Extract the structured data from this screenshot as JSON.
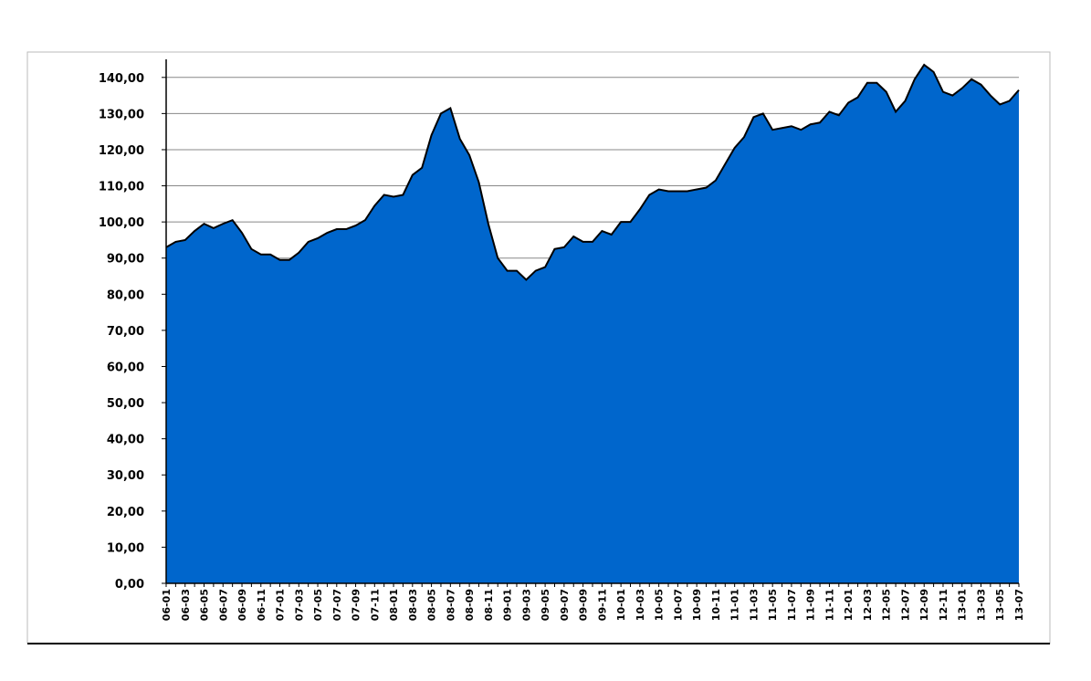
{
  "chart_data": {
    "type": "area",
    "categories": [
      "06-01",
      null,
      "06-03",
      null,
      "06-05",
      null,
      "06-07",
      null,
      "06-09",
      null,
      "06-11",
      null,
      "07-01",
      null,
      "07-03",
      null,
      "07-05",
      null,
      "07-07",
      null,
      "07-09",
      null,
      "07-11",
      null,
      "08-01",
      null,
      "08-03",
      null,
      "08-05",
      null,
      "08-07",
      null,
      "08-09",
      null,
      "08-11",
      null,
      "09-01",
      null,
      "09-03",
      null,
      "09-05",
      null,
      "09-07",
      null,
      "09-09",
      null,
      "09-11",
      null,
      "10-01",
      null,
      "10-03",
      null,
      "10-05",
      null,
      "10-07",
      null,
      "10-09",
      null,
      "10-11",
      null,
      "11-01",
      null,
      "11-03",
      null,
      "11-05",
      null,
      "11-07",
      null,
      "11-09",
      null,
      "11-11",
      null,
      "12-01",
      null,
      "12-03",
      null,
      "12-05",
      null,
      "12-07",
      null,
      "12-09",
      null,
      "12-11",
      null,
      "13-01",
      null,
      "13-03",
      null,
      "13-05",
      null,
      "13-07"
    ],
    "values": [
      93,
      94.5,
      95,
      97.5,
      99.5,
      98.3,
      99.5,
      100.5,
      97,
      92.5,
      91,
      91,
      89.5,
      89.5,
      91.5,
      94.5,
      95.5,
      97,
      98,
      98,
      99,
      100.5,
      104.5,
      107.5,
      107,
      107.5,
      113,
      115,
      124,
      130,
      131.5,
      123,
      118.5,
      111,
      99.5,
      90,
      86.5,
      86.5,
      84,
      86.5,
      87.5,
      92.5,
      93,
      96,
      94.5,
      94.5,
      97.5,
      96.5,
      100,
      100,
      103.5,
      107.5,
      109,
      108.5,
      108.5,
      108.5,
      109,
      109.5,
      111.5,
      116,
      120.5,
      123.5,
      129,
      130,
      125.5,
      126,
      126.5,
      125.5,
      127,
      127.5,
      130.5,
      129.5,
      133,
      134.5,
      138.5,
      138.5,
      136,
      130.5,
      133.5,
      139.5,
      143.5,
      141.5,
      136,
      135,
      137,
      139.5,
      138,
      135,
      132.5,
      133.5,
      136.5
    ],
    "color": "#0066cc",
    "ylim": [
      0,
      145
    ],
    "yticks": [
      {
        "value": 0,
        "label": "0,00"
      },
      {
        "value": 10,
        "label": "10,00"
      },
      {
        "value": 20,
        "label": "20,00"
      },
      {
        "value": 30,
        "label": "30,00"
      },
      {
        "value": 40,
        "label": "40,00"
      },
      {
        "value": 50,
        "label": "50,00"
      },
      {
        "value": 60,
        "label": "60,00"
      },
      {
        "value": 70,
        "label": "70,00"
      },
      {
        "value": 80,
        "label": "80,00"
      },
      {
        "value": 90,
        "label": "90,00"
      },
      {
        "value": 100,
        "label": "100,00"
      },
      {
        "value": 110,
        "label": "110,00"
      },
      {
        "value": 120,
        "label": "120,00"
      },
      {
        "value": 130,
        "label": "130,00"
      },
      {
        "value": 140,
        "label": "140,00"
      }
    ],
    "grid": true
  }
}
